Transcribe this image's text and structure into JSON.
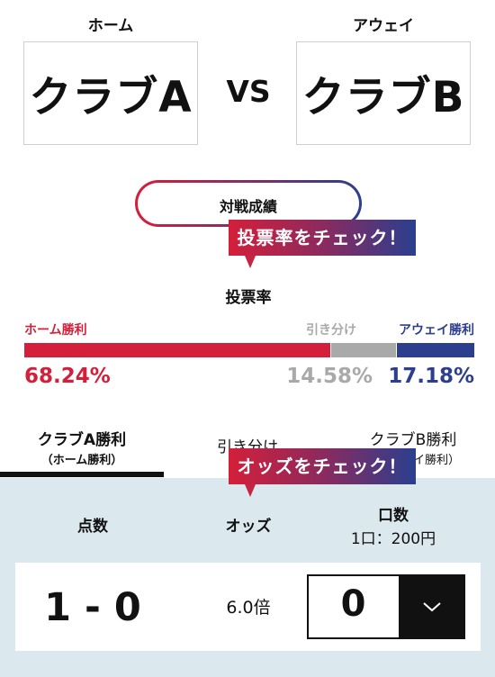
{
  "match": {
    "home_label": "ホーム",
    "away_label": "アウェイ",
    "home_team": "クラブA",
    "away_team": "クラブB",
    "vs": "VS"
  },
  "record_button": {
    "label": "対戦成績"
  },
  "callouts": {
    "vote": "投票率をチェック！",
    "odds": "オッズをチェック！"
  },
  "vote": {
    "title": "投票率",
    "home": {
      "label": "ホーム勝利",
      "pct": "68.24%",
      "value": 68.24,
      "color": "#d41f3a"
    },
    "draw": {
      "label": "引き分け",
      "pct": "14.58%",
      "value": 14.58,
      "color": "#a9a9a9"
    },
    "away": {
      "label": "アウェイ勝利",
      "pct": "17.18%",
      "value": 17.18,
      "color": "#2c3f8e"
    }
  },
  "tabs": [
    {
      "label": "クラブA勝利",
      "sub": "（ホーム勝利）",
      "active": true
    },
    {
      "label": "引き分け",
      "sub": ""
    },
    {
      "label": "クラブB勝利",
      "sub": "（アウェイ勝利）"
    }
  ],
  "table": {
    "col_score": "点数",
    "col_odds": "オッズ",
    "col_qty": "口数",
    "col_qty_sub": "1口：200円"
  },
  "row": {
    "score": "1 - 0",
    "odds": "6.0倍",
    "qty": "0"
  },
  "icons": {
    "dropdown": "chevron-down-icon"
  }
}
